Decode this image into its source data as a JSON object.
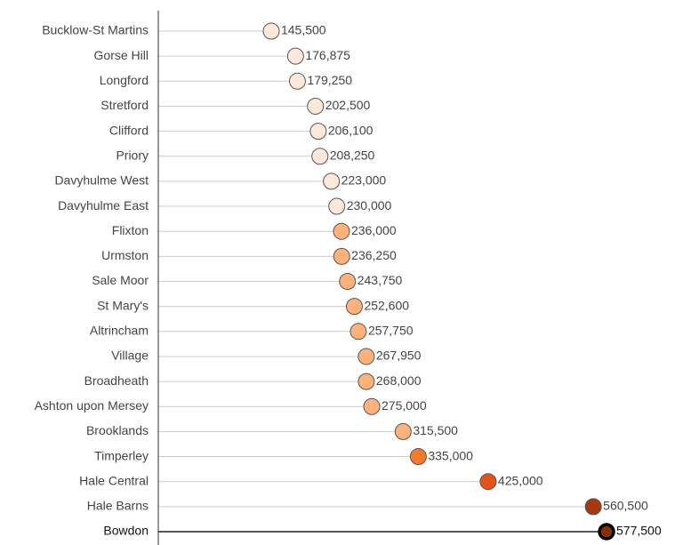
{
  "chart_data": {
    "type": "lollipop",
    "categories": [
      "Bucklow-St Martins",
      "Gorse Hill",
      "Longford",
      "Stretford",
      "Clifford",
      "Priory",
      "Davyhulme West",
      "Davyhulme East",
      "Flixton",
      "Urmston",
      "Sale Moor",
      "St Mary's",
      "Altrincham",
      "Village",
      "Broadheath",
      "Ashton upon Mersey",
      "Brooklands",
      "Timperley",
      "Hale Central",
      "Hale Barns",
      "Bowdon"
    ],
    "values": [
      145500,
      176875,
      179250,
      202500,
      206100,
      208250,
      223000,
      230000,
      236000,
      236250,
      243750,
      252600,
      257750,
      267950,
      268000,
      275000,
      315500,
      335000,
      425000,
      560500,
      577500
    ],
    "value_labels": [
      "145,500",
      "176,875",
      "179,250",
      "202,500",
      "206,100",
      "208,250",
      "223,000",
      "230,000",
      "236,000",
      "236,250",
      "243,750",
      "252,600",
      "257,750",
      "267,950",
      "268,000",
      "275,000",
      "315,500",
      "335,000",
      "425,000",
      "560,500",
      "577,500"
    ],
    "colors": [
      "#fee8d9",
      "#fee8d9",
      "#fee8d9",
      "#fee8d9",
      "#fee8d9",
      "#fee8d9",
      "#fee8d9",
      "#fee8d9",
      "#fdb27c",
      "#fdb27c",
      "#fdb27c",
      "#fdb27c",
      "#fdb27c",
      "#fdb27c",
      "#fdb27c",
      "#fdb27c",
      "#fdb27c",
      "#f57a2c",
      "#e3531a",
      "#a63a0e",
      "#8a2e08"
    ],
    "highlight_index": 20,
    "xlim": [
      0,
      660000
    ]
  }
}
